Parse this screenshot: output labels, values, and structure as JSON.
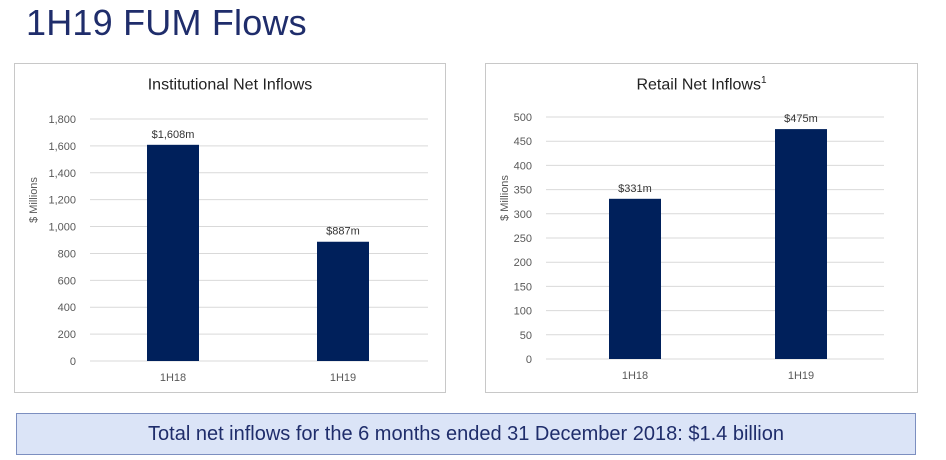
{
  "page": {
    "title": "1H19 FUM Flows",
    "summary": "Total net inflows for the 6 months ended 31 December 2018: $1.4 billion"
  },
  "colors": {
    "bar": "#00205b",
    "title": "#1f2d6b",
    "grid": "#d9d9d9",
    "summary_bg": "#dbe4f7"
  },
  "chart_data": [
    {
      "type": "bar",
      "title": "Institutional Net Inflows",
      "title_sup": "",
      "ylabel": "$ Millions",
      "xlabel": "",
      "categories": [
        "1H18",
        "1H19"
      ],
      "values": [
        1608,
        887
      ],
      "data_labels": [
        "$1,608m",
        "$887m"
      ],
      "ylim": [
        0,
        1800
      ],
      "yticks": [
        0,
        200,
        400,
        600,
        800,
        1000,
        1200,
        1400,
        1600,
        1800
      ],
      "ytick_labels": [
        "0",
        "200",
        "400",
        "600",
        "800",
        "1,000",
        "1,200",
        "1,400",
        "1,600",
        "1,800"
      ],
      "grid": true,
      "legend": "none"
    },
    {
      "type": "bar",
      "title": "Retail Net Inflows",
      "title_sup": "1",
      "ylabel": "$ Millions",
      "xlabel": "",
      "categories": [
        "1H18",
        "1H19"
      ],
      "values": [
        331,
        475
      ],
      "data_labels": [
        "$331m",
        "$475m"
      ],
      "ylim": [
        0,
        500
      ],
      "yticks": [
        0,
        50,
        100,
        150,
        200,
        250,
        300,
        350,
        400,
        450,
        500
      ],
      "ytick_labels": [
        "0",
        "50",
        "100",
        "150",
        "200",
        "250",
        "300",
        "350",
        "400",
        "450",
        "500"
      ],
      "grid": true,
      "legend": "none"
    }
  ]
}
